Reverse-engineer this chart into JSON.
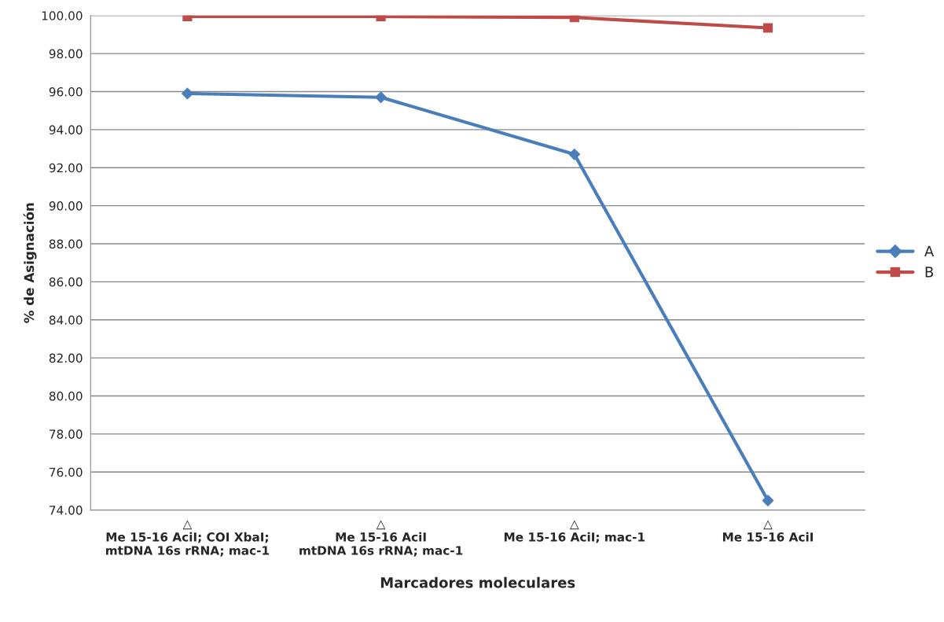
{
  "chart_data": {
    "type": "line",
    "xlabel": "Marcadores moleculares",
    "ylabel": "% de Asignación",
    "categories": [
      "△\nMe 15-16 AciI; COI XbaI;\nmtDNA 16s rRNA; mac-1",
      "△\nMe 15-16 AciI\nmtDNA 16s rRNA; mac-1",
      "△\nMe 15-16 AciI; mac-1",
      "△\nMe 15-16 AciI"
    ],
    "series": [
      {
        "name": "A",
        "color": "#4a7ebb",
        "marker": "diamond",
        "values": [
          95.9,
          95.7,
          92.7,
          74.5
        ]
      },
      {
        "name": "B",
        "color": "#be4b48",
        "marker": "square",
        "values": [
          99.95,
          99.95,
          99.9,
          99.35
        ]
      }
    ],
    "ylim": [
      74,
      100
    ],
    "yticks": [
      {
        "value": 74,
        "label": "74.00"
      },
      {
        "value": 76,
        "label": "76.00"
      },
      {
        "value": 78,
        "label": "78.00"
      },
      {
        "value": 80,
        "label": "80.00"
      },
      {
        "value": 82,
        "label": "82.00"
      },
      {
        "value": 84,
        "label": "84.00"
      },
      {
        "value": 86,
        "label": "86.00"
      },
      {
        "value": 88,
        "label": "88.00"
      },
      {
        "value": 90,
        "label": "90.00"
      },
      {
        "value": 92,
        "label": "92.00"
      },
      {
        "value": 94,
        "label": "94.00"
      },
      {
        "value": 96,
        "label": "96.00"
      },
      {
        "value": 98,
        "label": "98.00"
      },
      {
        "value": 100,
        "label": "100.00"
      }
    ],
    "grid": "y",
    "legend": "right",
    "line_style": "solid"
  }
}
